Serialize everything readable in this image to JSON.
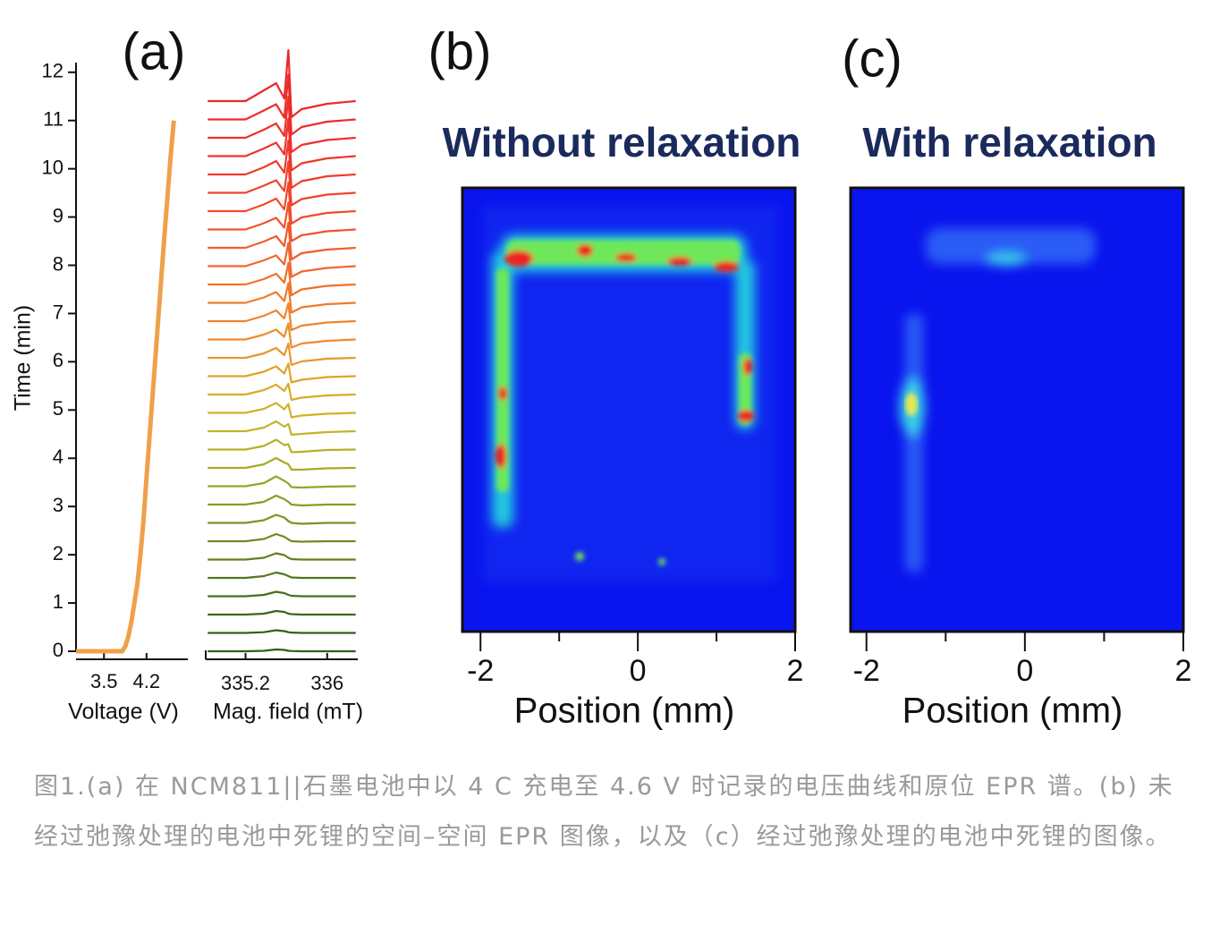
{
  "chart_data": [
    {
      "type": "line",
      "panel": "(a)",
      "xlabel": "Voltage (V)",
      "ylabel": "Time (min)",
      "color": "#f0a04b",
      "x": [
        3.04,
        3.3,
        3.6,
        3.8,
        3.85,
        3.9,
        3.95,
        4.0,
        4.05,
        4.1,
        4.15,
        4.2,
        4.3,
        4.4,
        4.5,
        4.6,
        4.65
      ],
      "values": [
        0,
        0,
        0,
        0,
        0.1,
        0.3,
        0.6,
        1.0,
        1.4,
        2.0,
        2.7,
        3.6,
        5.3,
        7.0,
        8.7,
        10.3,
        11.0
      ],
      "xlim": [
        3.04,
        4.88
      ],
      "xticks": [
        3.5,
        4.2
      ],
      "ylim": [
        0,
        12.2
      ],
      "yticks": [
        0,
        1,
        2,
        3,
        4,
        5,
        6,
        7,
        8,
        9,
        10,
        11,
        12
      ]
    },
    {
      "type": "waterfall",
      "xlabel": "Mag. field (mT)",
      "xlim": [
        334.81,
        336.3
      ],
      "xticks": [
        335.2,
        336.0
      ],
      "x": [
        334.83,
        335.2,
        335.38,
        335.5,
        335.58,
        335.62,
        335.65,
        335.75,
        336.0,
        336.28
      ],
      "series": [
        {
          "color": "#2f5d1a",
          "values": [
            0,
            0,
            0.5,
            2,
            1.5,
            0.5,
            0.3,
            0,
            0,
            0
          ]
        },
        {
          "color": "#365f1a",
          "values": [
            0,
            0,
            0.8,
            3,
            2,
            0.8,
            0.4,
            0,
            0,
            0
          ]
        },
        {
          "color": "#3f661b",
          "values": [
            0,
            0,
            1,
            4,
            3,
            1,
            0.5,
            0,
            0,
            0
          ]
        },
        {
          "color": "#4a6e1c",
          "values": [
            0,
            0,
            1.5,
            5,
            3.5,
            1.5,
            0.5,
            0,
            0,
            0
          ]
        },
        {
          "color": "#55751d",
          "values": [
            0,
            0,
            2,
            6,
            4,
            2,
            0.5,
            0,
            0,
            0
          ]
        },
        {
          "color": "#62801f",
          "values": [
            0,
            0,
            2,
            7,
            5,
            2,
            0.5,
            0,
            0,
            0
          ]
        },
        {
          "color": "#708a21",
          "values": [
            0,
            0,
            2.5,
            8,
            5,
            2,
            0,
            -0.5,
            0,
            0
          ]
        },
        {
          "color": "#7e9322",
          "values": [
            0,
            0,
            3,
            9,
            6,
            2,
            0,
            -1,
            0,
            0
          ]
        },
        {
          "color": "#8c9b24",
          "values": [
            0,
            0,
            3,
            10,
            6,
            3,
            0,
            -1,
            0,
            0
          ]
        },
        {
          "color": "#9aa225",
          "values": [
            0,
            0,
            3.5,
            11,
            6,
            3,
            -1,
            -1.5,
            -0.5,
            0
          ]
        },
        {
          "color": "#a8aa26",
          "values": [
            0,
            0,
            4,
            11,
            6,
            4,
            -2,
            -2,
            -0.5,
            0
          ]
        },
        {
          "color": "#b6b027",
          "values": [
            0,
            0,
            4,
            11,
            5,
            6,
            -3,
            -2.5,
            -0.5,
            0
          ]
        },
        {
          "color": "#c4b428",
          "values": [
            0,
            0,
            4,
            11,
            5,
            8,
            -4,
            -3,
            -1,
            0
          ]
        },
        {
          "color": "#cfb229",
          "values": [
            0,
            0,
            4.5,
            11,
            4,
            10,
            -5,
            -3,
            -1,
            0
          ]
        },
        {
          "color": "#d8ab2a",
          "values": [
            0,
            0,
            5,
            11,
            4,
            12,
            -6,
            -3.5,
            -1,
            0
          ]
        },
        {
          "color": "#e0a22b",
          "values": [
            0,
            0,
            5,
            11,
            3,
            14,
            -7,
            -4,
            -1,
            0
          ]
        },
        {
          "color": "#e6982b",
          "values": [
            0,
            0,
            5,
            11,
            3,
            16,
            -8,
            -4,
            -1,
            0
          ]
        },
        {
          "color": "#eb8e2b",
          "values": [
            0,
            0,
            5.5,
            11,
            3,
            18,
            -9,
            -4.5,
            -1.5,
            0
          ]
        },
        {
          "color": "#ee842b",
          "values": [
            0,
            0,
            6,
            12,
            3,
            20,
            -10,
            -5,
            -1.5,
            0
          ]
        },
        {
          "color": "#f07a2b",
          "values": [
            0,
            0,
            6,
            12,
            2,
            22,
            -11,
            -5,
            -1.5,
            0
          ]
        },
        {
          "color": "#f1702b",
          "values": [
            0,
            0,
            6,
            12,
            2,
            24,
            -12,
            -5.5,
            -1.5,
            0
          ]
        },
        {
          "color": "#f2662b",
          "values": [
            0,
            0,
            6.5,
            12,
            2,
            26,
            -12,
            -6,
            -2,
            0
          ]
        },
        {
          "color": "#f25c2b",
          "values": [
            0,
            0,
            7,
            13,
            2,
            28,
            -13,
            -6,
            -2,
            0
          ]
        },
        {
          "color": "#f2532b",
          "values": [
            0,
            0,
            7,
            13,
            2,
            30,
            -13,
            -6.5,
            -2,
            0
          ]
        },
        {
          "color": "#f24a2b",
          "values": [
            0,
            0,
            7.5,
            14,
            2,
            32,
            -14,
            -7,
            -2,
            0
          ]
        },
        {
          "color": "#f1422b",
          "values": [
            0,
            0,
            8,
            14,
            2,
            35,
            -14,
            -7,
            -2,
            0
          ]
        },
        {
          "color": "#f03a2b",
          "values": [
            0,
            0,
            8,
            15,
            2,
            38,
            -15,
            -7.5,
            -2,
            0
          ]
        },
        {
          "color": "#ef342b",
          "values": [
            0,
            0,
            8.5,
            15,
            2,
            42,
            -16,
            -8,
            -2.5,
            0
          ]
        },
        {
          "color": "#ee302b",
          "values": [
            0,
            0,
            9,
            16,
            2,
            46,
            -16,
            -8,
            -2.5,
            0
          ]
        },
        {
          "color": "#ed2c2b",
          "values": [
            0,
            0,
            10,
            17,
            2,
            50,
            -17,
            -8.5,
            -2.5,
            0
          ]
        },
        {
          "color": "#ec2828",
          "values": [
            0,
            0,
            12,
            20,
            3,
            57,
            -18,
            -9,
            -3,
            0
          ]
        }
      ]
    },
    {
      "type": "heatmap",
      "panel": "(b)",
      "title": "Without relaxation",
      "xlabel": "Position (mm)",
      "xlim": [
        -2.23,
        2
      ],
      "xticks": [
        -2,
        0,
        2
      ],
      "minor_xticks": [
        -1,
        1
      ]
    },
    {
      "type": "heatmap",
      "panel": "(c)",
      "title": "With relaxation",
      "xlabel": "Position (mm)",
      "xlim": [
        -2.2,
        2
      ],
      "xticks": [
        -2,
        0,
        2
      ],
      "minor_xticks": [
        -1,
        1
      ]
    }
  ],
  "caption": "图1.(a) 在 NCM811||石墨电池中以 4 C 充电至 4.6 V 时记录的电压曲线和原位 EPR 谱。(b) 未经过弛豫处理的电池中死锂的空间–空间 EPR 图像，以及（c）经过弛豫处理的电池中死锂的图像。"
}
